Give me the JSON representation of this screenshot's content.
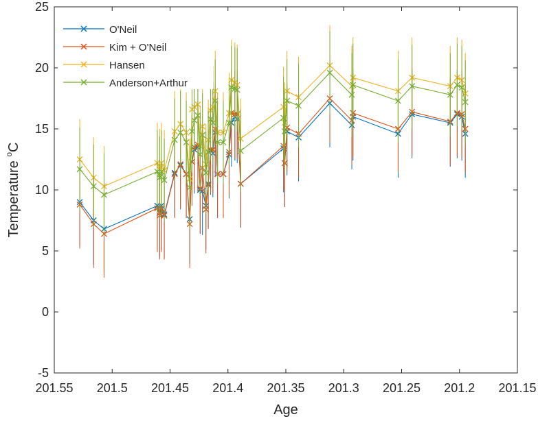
{
  "chart_data": {
    "type": "line",
    "xlabel": "Age",
    "ylabel_main": "Temperature ",
    "ylabel_degree": "o",
    "ylabel_unit": "C",
    "x_reversed": true,
    "xlim": [
      201.15,
      201.55
    ],
    "ylim": [
      -5,
      25
    ],
    "x_ticks": [
      "201.55",
      "201.5",
      "201.45",
      "201.4",
      "201.35",
      "201.3",
      "201.25",
      "201.2",
      "201.15"
    ],
    "x_tick_values": [
      201.55,
      201.5,
      201.45,
      201.4,
      201.35,
      201.3,
      201.25,
      201.2,
      201.15
    ],
    "y_ticks": [
      "-5",
      "0",
      "5",
      "10",
      "15",
      "20",
      "25"
    ],
    "y_tick_values": [
      -5,
      0,
      5,
      10,
      15,
      20,
      25
    ],
    "grid": false,
    "legend_position": "top-left",
    "x": [
      201.528,
      201.516,
      201.507,
      201.461,
      201.459,
      201.4575,
      201.455,
      201.446,
      201.441,
      201.436,
      201.433,
      201.431,
      201.429,
      201.426,
      201.424,
      201.422,
      201.419,
      201.417,
      201.415,
      201.413,
      201.411,
      201.409,
      201.404,
      201.399,
      201.397,
      201.394,
      201.392,
      201.389,
      201.352,
      201.351,
      201.349,
      201.339,
      201.312,
      201.293,
      201.292,
      201.253,
      201.241,
      201.208,
      201.202,
      201.198,
      201.195
    ],
    "series": [
      {
        "name": "O'Neil",
        "color": "#0072BD",
        "values": [
          9.0,
          7.5,
          6.8,
          8.7,
          8.1,
          8.7,
          8.0,
          11.4,
          12.0,
          11.3,
          7.6,
          12.3,
          13.3,
          13.5,
          10.0,
          9.9,
          8.7,
          10.5,
          13.2,
          13.0,
          14.7,
          11.3,
          11.3,
          12.9,
          15.5,
          16.0,
          15.8,
          10.5,
          13.4,
          12.2,
          14.8,
          14.3,
          17.1,
          15.3,
          16.0,
          14.6,
          16.2,
          15.5,
          16.2,
          16.0,
          14.6
        ]
      },
      {
        "name": "Kim + O'Neil",
        "color": "#D95319",
        "values": [
          8.8,
          7.2,
          6.4,
          8.5,
          7.9,
          8.5,
          7.9,
          11.3,
          12.1,
          11.3,
          7.2,
          12.3,
          13.5,
          13.7,
          10.1,
          11.8,
          8.4,
          10.4,
          13.3,
          13.3,
          15.0,
          11.3,
          11.3,
          13.1,
          16.3,
          16.2,
          16.2,
          10.5,
          13.6,
          12.2,
          15.1,
          14.6,
          17.5,
          15.7,
          16.3,
          15.0,
          16.4,
          15.6,
          16.3,
          16.2,
          15.0
        ]
      },
      {
        "name": "Hansen",
        "color": "#EDB120",
        "values": [
          12.5,
          11.0,
          10.3,
          12.2,
          11.7,
          12.2,
          11.6,
          14.8,
          15.4,
          14.7,
          10.9,
          16.6,
          16.8,
          17.0,
          13.6,
          15.2,
          12.1,
          14.1,
          16.5,
          16.8,
          18.1,
          14.7,
          14.7,
          16.3,
          19.0,
          18.8,
          18.6,
          14.2,
          16.8,
          15.5,
          18.1,
          17.6,
          20.2,
          18.5,
          19.2,
          18.1,
          19.2,
          18.5,
          19.2,
          19.0,
          17.9
        ]
      },
      {
        "name": "Anderson+Arthur",
        "color": "#77AC30",
        "values": [
          11.7,
          10.3,
          9.6,
          11.5,
          11.0,
          11.5,
          10.8,
          14.1,
          14.7,
          13.9,
          10.2,
          14.8,
          15.7,
          16.1,
          12.9,
          14.5,
          11.4,
          13.1,
          15.8,
          15.5,
          17.3,
          13.9,
          13.9,
          15.5,
          18.4,
          18.3,
          18.2,
          13.2,
          15.9,
          14.8,
          17.3,
          16.9,
          19.6,
          17.8,
          18.6,
          17.3,
          18.5,
          17.8,
          18.6,
          18.4,
          17.2
        ]
      }
    ]
  },
  "legend_entries": [
    "O'Neil",
    "Kim + O'Neil",
    "Hansen",
    "Anderson+Arthur"
  ]
}
